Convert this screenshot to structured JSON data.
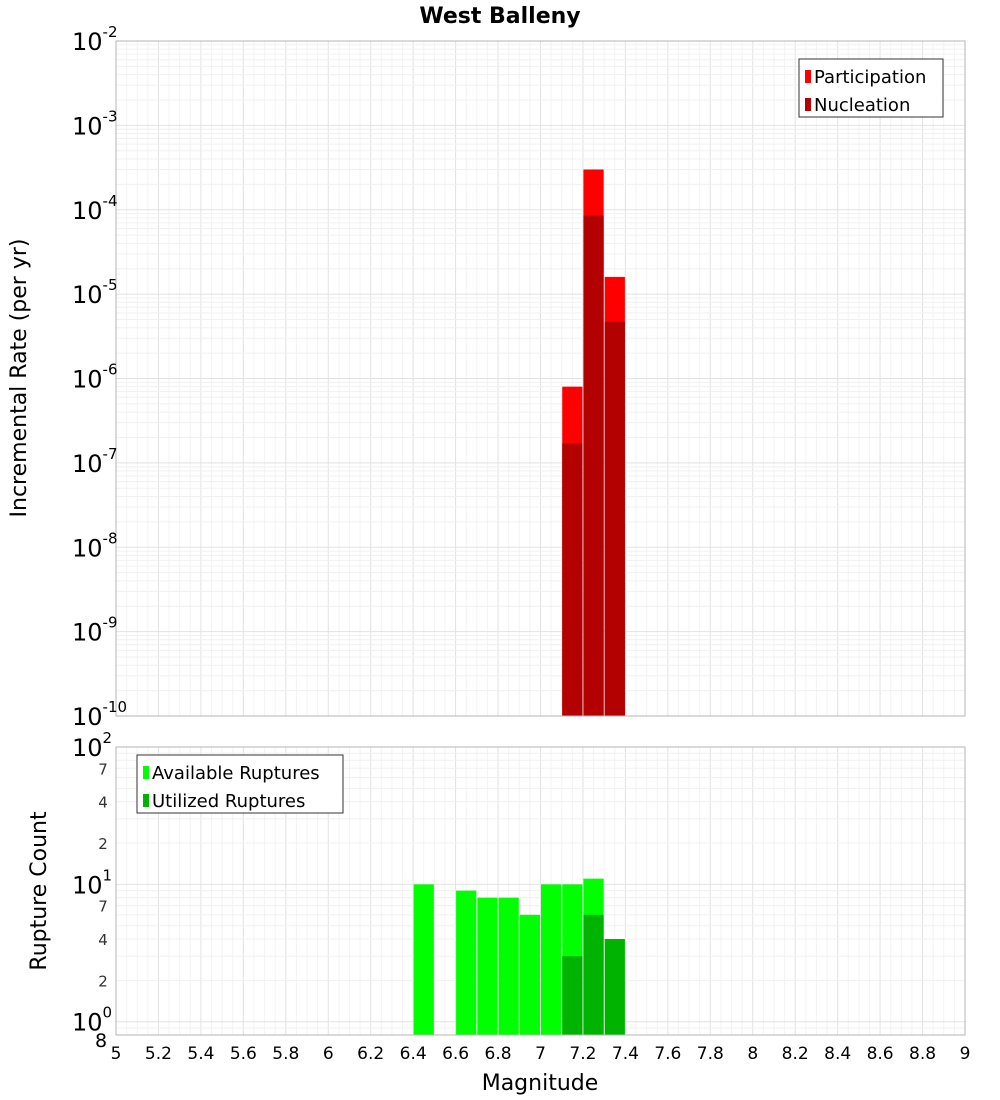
{
  "chart_data": [
    {
      "type": "bar",
      "title": "West Balleny",
      "xlabel": "",
      "ylabel": "Incremental Rate (per yr)",
      "xlim": [
        5,
        9
      ],
      "ylim": [
        1e-10,
        0.01
      ],
      "yscale": "log",
      "bar_width": 0.1,
      "y_ticks": [
        {
          "base": "10",
          "exp": "-10"
        },
        {
          "base": "10",
          "exp": "-9"
        },
        {
          "base": "10",
          "exp": "-8"
        },
        {
          "base": "10",
          "exp": "-7"
        },
        {
          "base": "10",
          "exp": "-6"
        },
        {
          "base": "10",
          "exp": "-5"
        },
        {
          "base": "10",
          "exp": "-4"
        },
        {
          "base": "10",
          "exp": "-3"
        },
        {
          "base": "10",
          "exp": "-2"
        }
      ],
      "legend_position": "top-right",
      "grid": true,
      "series": [
        {
          "name": "Participation",
          "color": "#ff0000",
          "x": [
            7.15,
            7.25,
            7.35
          ],
          "values": [
            8e-07,
            0.0003,
            1.6e-05
          ]
        },
        {
          "name": "Nucleation",
          "color": "#b30000",
          "x": [
            7.15,
            7.25,
            7.35
          ],
          "values": [
            1.7e-07,
            8.5e-05,
            4.7e-06
          ]
        }
      ]
    },
    {
      "type": "bar",
      "title": "",
      "xlabel": "Magnitude",
      "ylabel": "Rupture Count",
      "xlim": [
        5,
        9
      ],
      "ylim": [
        0.8,
        100
      ],
      "yscale": "log",
      "bar_width": 0.1,
      "x_ticks": [
        "5",
        "5.2",
        "5.4",
        "5.6",
        "5.8",
        "6",
        "6.2",
        "6.4",
        "6.6",
        "6.8",
        "7",
        "7.2",
        "7.4",
        "7.6",
        "7.8",
        "8",
        "8.2",
        "8.4",
        "8.6",
        "8.8",
        "9"
      ],
      "y_ticks": [
        {
          "base": "10",
          "exp": "0",
          "value": 1
        },
        {
          "base": "10",
          "exp": "1",
          "value": 10
        },
        {
          "base": "10",
          "exp": "2",
          "value": 100
        }
      ],
      "y_minor_ticks": [
        {
          "label": "8",
          "value": 0.8
        },
        {
          "label": "2",
          "value": 2
        },
        {
          "label": "4",
          "value": 4
        },
        {
          "label": "7",
          "value": 7
        },
        {
          "label": "2",
          "value": 20
        },
        {
          "label": "4",
          "value": 40
        },
        {
          "label": "7",
          "value": 70
        }
      ],
      "legend_position": "top-left",
      "grid": true,
      "series": [
        {
          "name": "Available Ruptures",
          "color": "#00ff00",
          "x": [
            6.45,
            6.65,
            6.75,
            6.85,
            6.95,
            7.05,
            7.15,
            7.25
          ],
          "values": [
            10,
            9,
            8,
            8,
            6,
            10,
            10,
            11
          ]
        },
        {
          "name": "Utilized Ruptures",
          "color": "#00b300",
          "x": [
            7.15,
            7.25,
            7.35
          ],
          "values": [
            3,
            6,
            4
          ]
        }
      ]
    }
  ]
}
